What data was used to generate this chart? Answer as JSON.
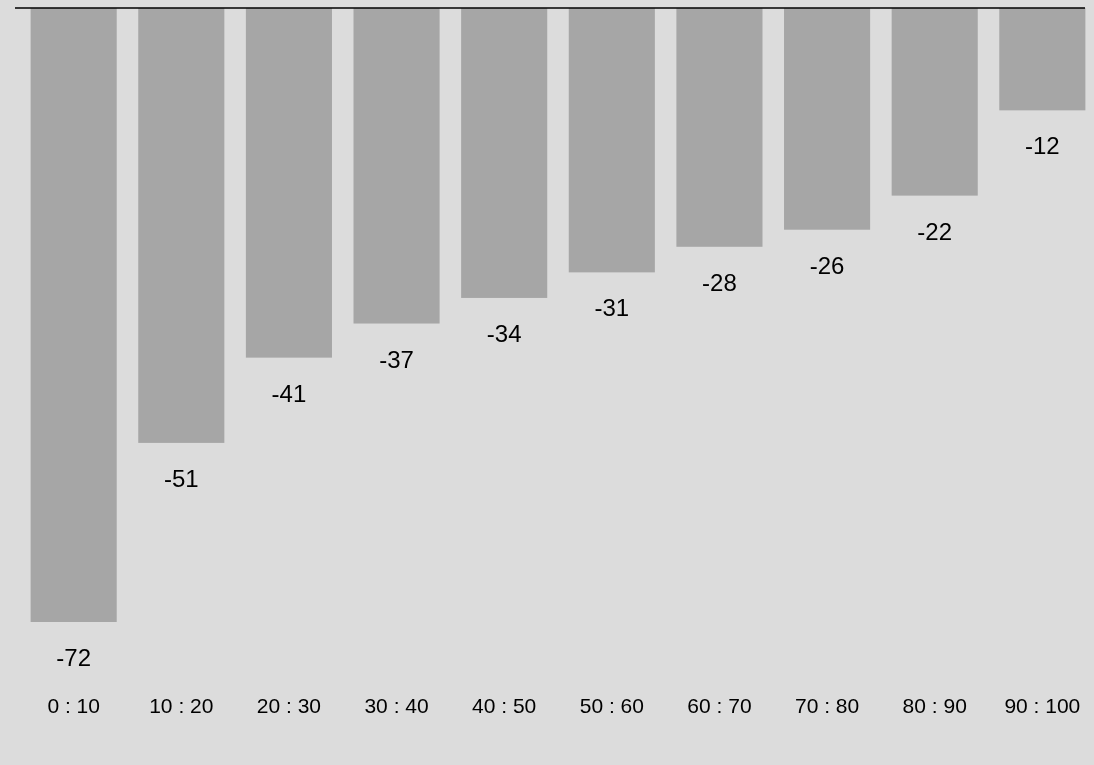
{
  "chart_data": {
    "type": "bar",
    "categories": [
      "0 : 10",
      "10 : 20",
      "20 : 30",
      "30 : 40",
      "40 : 50",
      "50 : 60",
      "60 : 70",
      "70 : 80",
      "80 : 90",
      "90 : 100"
    ],
    "values": [
      -72,
      -51,
      -41,
      -37,
      -34,
      -31,
      -28,
      -26,
      -22,
      -12
    ],
    "color": "#a6a6a6",
    "data_labels": true
  }
}
